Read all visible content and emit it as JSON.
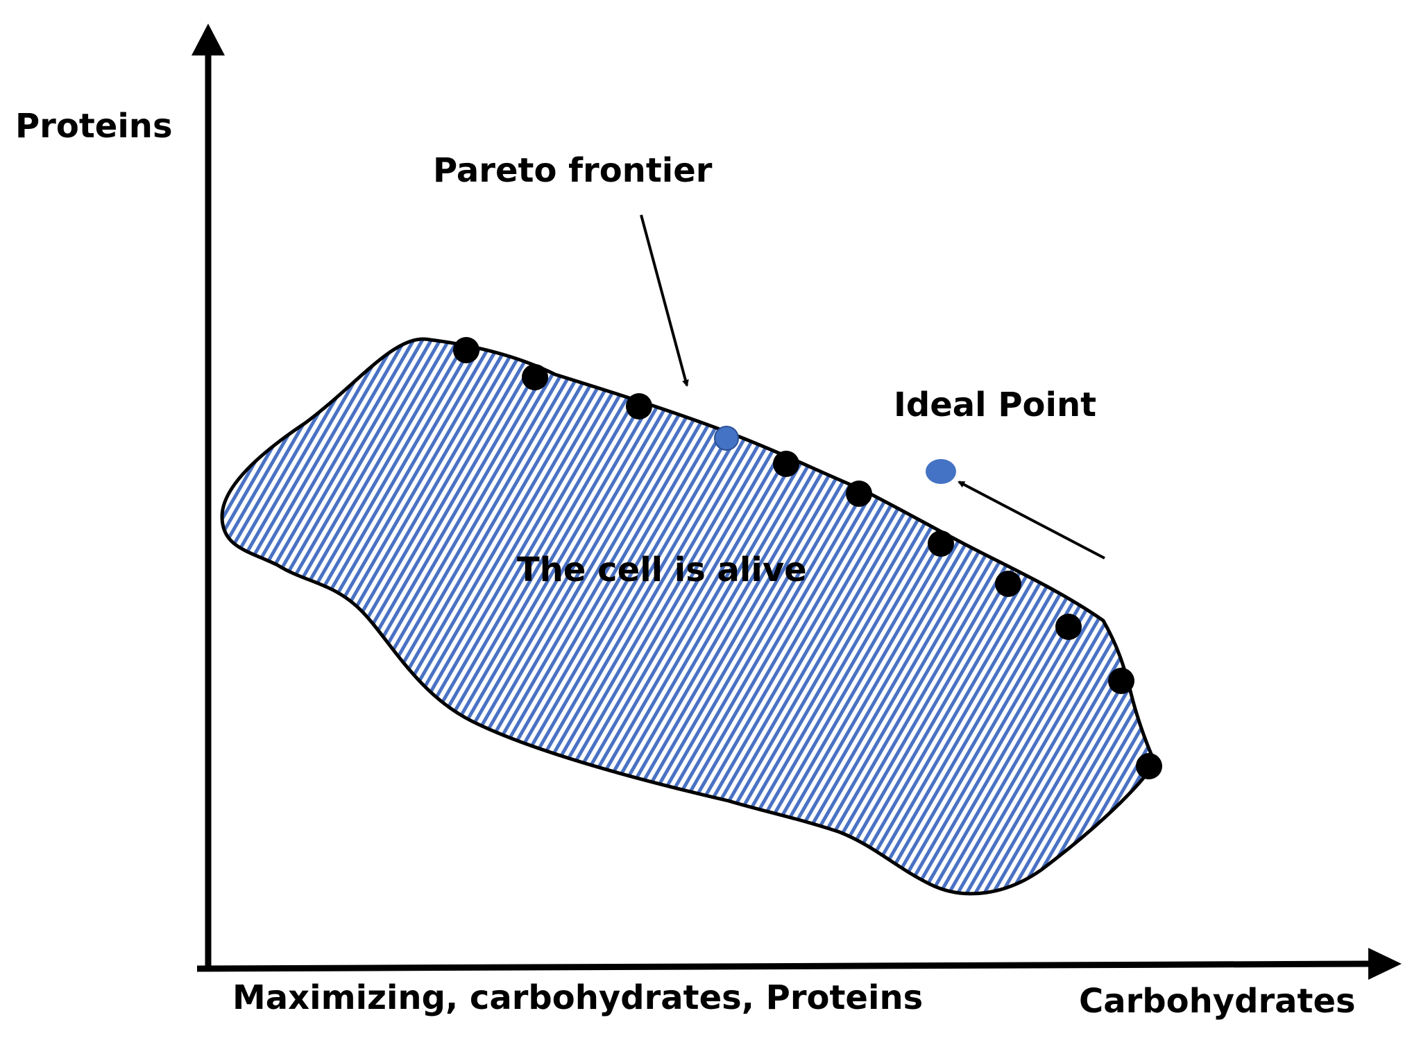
{
  "labels": {
    "y_axis": "Proteins",
    "x_axis": "Carbohydrates",
    "caption": "Maximizing, carbohydrates, Proteins",
    "pareto": "Pareto frontier",
    "ideal": "Ideal Point",
    "region": "The cell is alive"
  },
  "colors": {
    "stroke": "#000000",
    "hatch": "#4a72c4",
    "ideal_point": "#4472c4",
    "pareto_point": "#000000"
  },
  "pareto_point_count": 11,
  "highlighted_point_count": 1
}
